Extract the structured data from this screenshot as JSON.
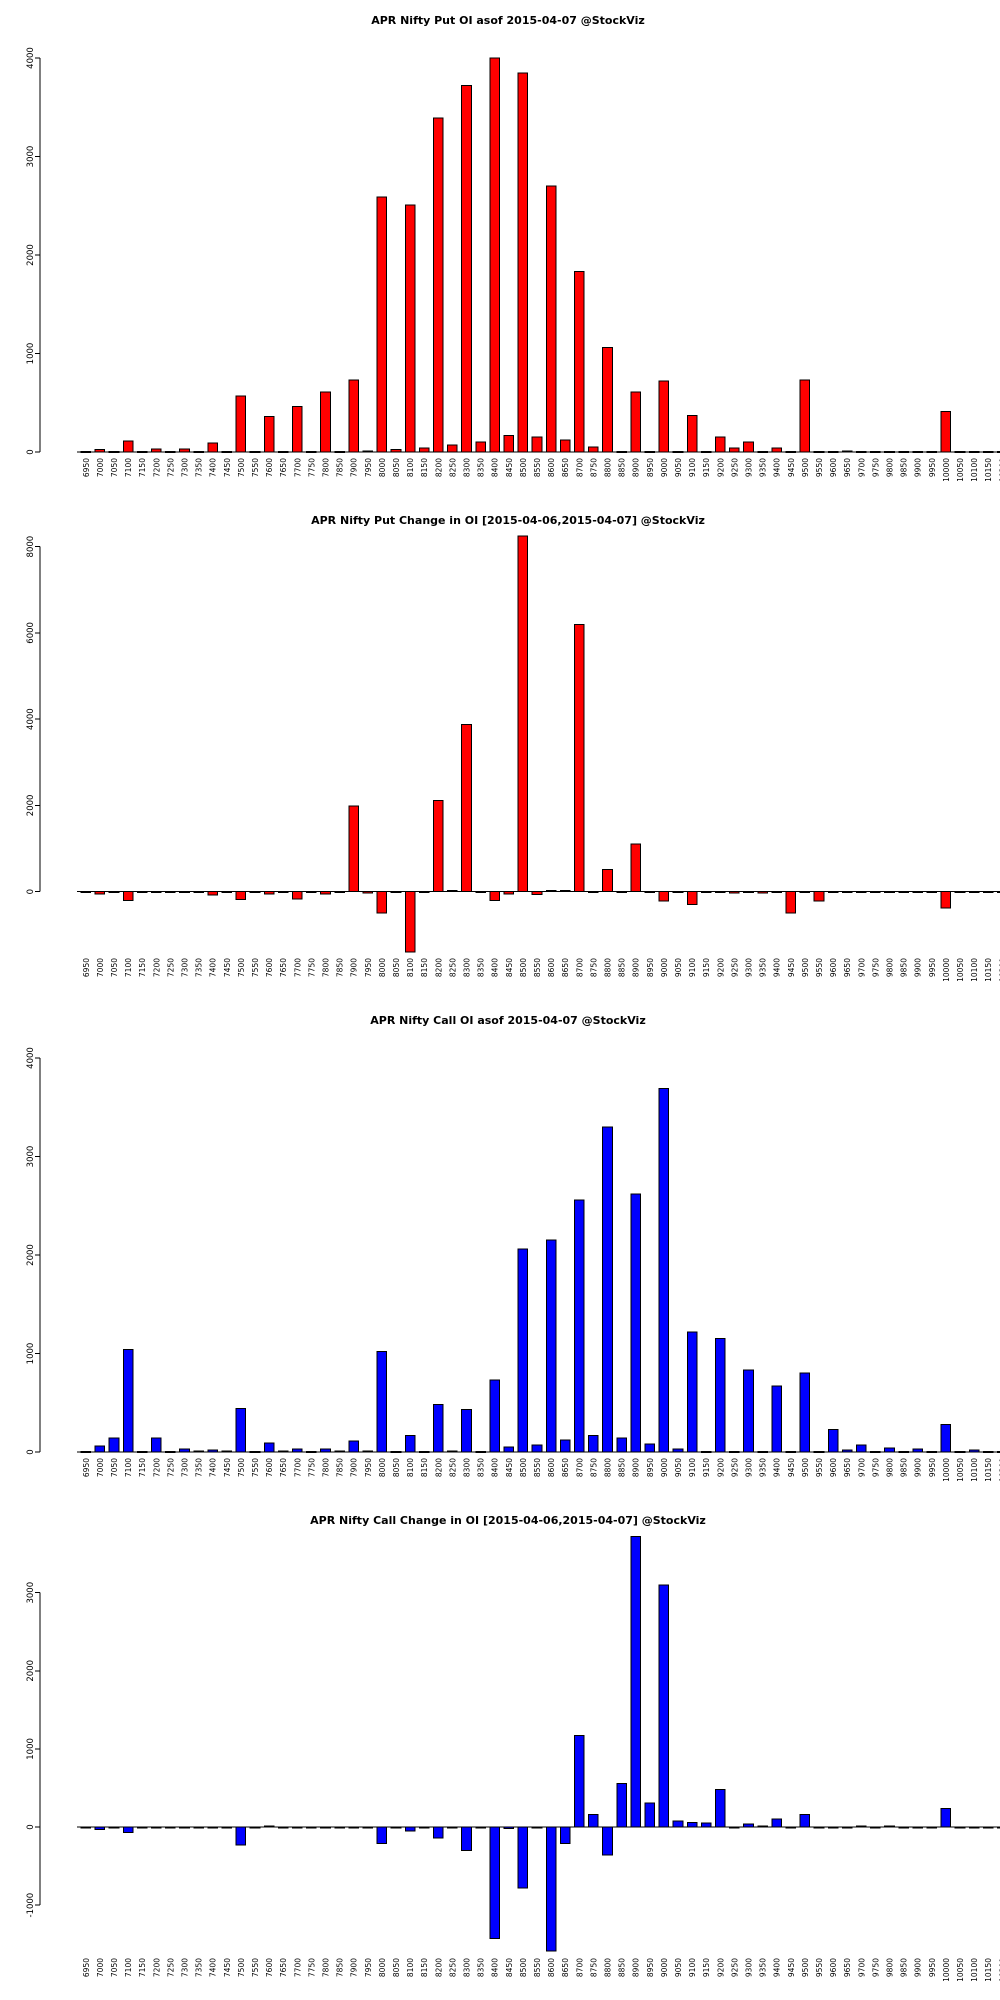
{
  "chart_data": [
    {
      "type": "bar",
      "title": "APR Nifty Put OI asof 2015-04-07 @StockViz",
      "xlabel": "",
      "ylabel": "",
      "color": "#ff0000",
      "ylim": [
        0,
        4000
      ],
      "yticks": [
        0,
        1000,
        2000,
        3000,
        4000
      ],
      "categories": [
        "6950",
        "7000",
        "7050",
        "7100",
        "7150",
        "7200",
        "7250",
        "7300",
        "7350",
        "7400",
        "7450",
        "7500",
        "7550",
        "7600",
        "7650",
        "7700",
        "7750",
        "7800",
        "7850",
        "7900",
        "7950",
        "8000",
        "8050",
        "8100",
        "8150",
        "8200",
        "8250",
        "8300",
        "8350",
        "8400",
        "8450",
        "8500",
        "8550",
        "8600",
        "8650",
        "8700",
        "8750",
        "8800",
        "8850",
        "8900",
        "8950",
        "9000",
        "9050",
        "9100",
        "9150",
        "9200",
        "9250",
        "9300",
        "9350",
        "9400",
        "9450",
        "9500",
        "9550",
        "9600",
        "9650",
        "9700",
        "9750",
        "9800",
        "9850",
        "9900",
        "9950",
        "10000",
        "10050",
        "10100",
        "10150",
        "10200"
      ],
      "values": [
        5,
        25,
        5,
        110,
        5,
        30,
        5,
        30,
        5,
        90,
        5,
        570,
        5,
        360,
        5,
        460,
        5,
        610,
        5,
        730,
        10,
        2590,
        25,
        2510,
        40,
        3390,
        70,
        3720,
        100,
        4000,
        170,
        3850,
        150,
        2700,
        120,
        1830,
        50,
        1060,
        5,
        610,
        5,
        720,
        5,
        370,
        5,
        150,
        40,
        100,
        5,
        40,
        5,
        730,
        5,
        5,
        10,
        5,
        5,
        5,
        5,
        5,
        5,
        410,
        5,
        5,
        5,
        5
      ]
    },
    {
      "type": "bar",
      "title": "APR Nifty Put Change in OI [2015-04-06,2015-04-07] @StockViz",
      "xlabel": "",
      "ylabel": "",
      "color": "#ff0000",
      "ylim": [
        -1400,
        8200
      ],
      "yticks": [
        0,
        2000,
        4000,
        6000,
        8000
      ],
      "categories": [
        "6950",
        "7000",
        "7050",
        "7100",
        "7150",
        "7200",
        "7250",
        "7300",
        "7350",
        "7400",
        "7450",
        "7500",
        "7550",
        "7600",
        "7650",
        "7700",
        "7750",
        "7800",
        "7850",
        "7900",
        "7950",
        "8000",
        "8050",
        "8100",
        "8150",
        "8200",
        "8250",
        "8300",
        "8350",
        "8400",
        "8450",
        "8500",
        "8550",
        "8600",
        "8650",
        "8700",
        "8750",
        "8800",
        "8850",
        "8900",
        "8950",
        "9000",
        "9050",
        "9100",
        "9150",
        "9200",
        "9250",
        "9300",
        "9350",
        "9400",
        "9450",
        "9500",
        "9550",
        "9600",
        "9650",
        "9700",
        "9750",
        "9800",
        "9850",
        "9900",
        "9950",
        "10000",
        "10050",
        "10100",
        "10150",
        "10200"
      ],
      "values": [
        0,
        -60,
        0,
        -200,
        0,
        0,
        0,
        0,
        0,
        -80,
        0,
        -180,
        0,
        -60,
        0,
        -170,
        0,
        -60,
        0,
        1980,
        -30,
        -500,
        0,
        -1400,
        0,
        2110,
        30,
        3870,
        0,
        -210,
        -50,
        8250,
        -70,
        30,
        30,
        6200,
        0,
        510,
        -20,
        1110,
        0,
        -220,
        0,
        -300,
        0,
        0,
        -30,
        0,
        -30,
        0,
        -500,
        0,
        -220,
        0,
        0,
        0,
        0,
        0,
        0,
        0,
        0,
        -380,
        0,
        0,
        0,
        0
      ]
    },
    {
      "type": "bar",
      "title": "APR Nifty Call OI asof 2015-04-07 @StockViz",
      "xlabel": "",
      "ylabel": "",
      "color": "#0000ff",
      "ylim": [
        0,
        4000
      ],
      "yticks": [
        0,
        1000,
        2000,
        3000,
        4000
      ],
      "categories": [
        "6950",
        "7000",
        "7050",
        "7100",
        "7150",
        "7200",
        "7250",
        "7300",
        "7350",
        "7400",
        "7450",
        "7500",
        "7550",
        "7600",
        "7650",
        "7700",
        "7750",
        "7800",
        "7850",
        "7900",
        "7950",
        "8000",
        "8050",
        "8100",
        "8150",
        "8200",
        "8250",
        "8300",
        "8350",
        "8400",
        "8450",
        "8500",
        "8550",
        "8600",
        "8650",
        "8700",
        "8750",
        "8800",
        "8850",
        "8900",
        "8950",
        "9000",
        "9050",
        "9100",
        "9150",
        "9200",
        "9250",
        "9300",
        "9350",
        "9400",
        "9450",
        "9500",
        "9550",
        "9600",
        "9650",
        "9700",
        "9750",
        "9800",
        "9850",
        "9900",
        "9950",
        "10000",
        "10050",
        "10100",
        "10150",
        "10200"
      ],
      "values": [
        5,
        60,
        140,
        1040,
        5,
        140,
        5,
        30,
        10,
        20,
        10,
        440,
        5,
        90,
        10,
        30,
        5,
        30,
        10,
        110,
        10,
        1020,
        5,
        170,
        5,
        480,
        10,
        430,
        5,
        730,
        50,
        2060,
        70,
        2150,
        120,
        2560,
        170,
        3300,
        140,
        2620,
        80,
        3690,
        30,
        1220,
        5,
        1150,
        5,
        830,
        5,
        670,
        5,
        800,
        5,
        230,
        20,
        70,
        5,
        40,
        5,
        30,
        5,
        280,
        5,
        20,
        5,
        5
      ]
    },
    {
      "type": "bar",
      "title": "APR Nifty Call Change in OI [2015-04-06,2015-04-07] @StockViz",
      "xlabel": "",
      "ylabel": "",
      "color": "#0000ff",
      "ylim": [
        -1600,
        3700
      ],
      "yticks": [
        -1000,
        0,
        1000,
        2000,
        3000
      ],
      "categories": [
        "6950",
        "7000",
        "7050",
        "7100",
        "7150",
        "7200",
        "7250",
        "7300",
        "7350",
        "7400",
        "7450",
        "7500",
        "7550",
        "7600",
        "7650",
        "7700",
        "7750",
        "7800",
        "7850",
        "7900",
        "7950",
        "8000",
        "8050",
        "8100",
        "8150",
        "8200",
        "8250",
        "8300",
        "8350",
        "8400",
        "8450",
        "8500",
        "8550",
        "8600",
        "8650",
        "8700",
        "8750",
        "8800",
        "8850",
        "8900",
        "8950",
        "9000",
        "9050",
        "9100",
        "9150",
        "9200",
        "9250",
        "9300",
        "9350",
        "9400",
        "9450",
        "9500",
        "9550",
        "9600",
        "9650",
        "9700",
        "9750",
        "9800",
        "9850",
        "9900",
        "9950",
        "10000",
        "10050",
        "10100",
        "10150",
        "10200"
      ],
      "values": [
        0,
        -30,
        0,
        -70,
        0,
        0,
        0,
        0,
        0,
        0,
        0,
        -230,
        0,
        10,
        0,
        0,
        0,
        0,
        0,
        0,
        0,
        -210,
        0,
        -50,
        0,
        -140,
        0,
        -300,
        0,
        -1430,
        -20,
        -780,
        0,
        -1590,
        -210,
        1170,
        160,
        -360,
        560,
        3720,
        310,
        3100,
        80,
        60,
        50,
        480,
        0,
        40,
        10,
        100,
        0,
        160,
        0,
        0,
        0,
        10,
        0,
        10,
        0,
        0,
        0,
        240,
        0,
        0,
        0,
        0
      ]
    }
  ]
}
